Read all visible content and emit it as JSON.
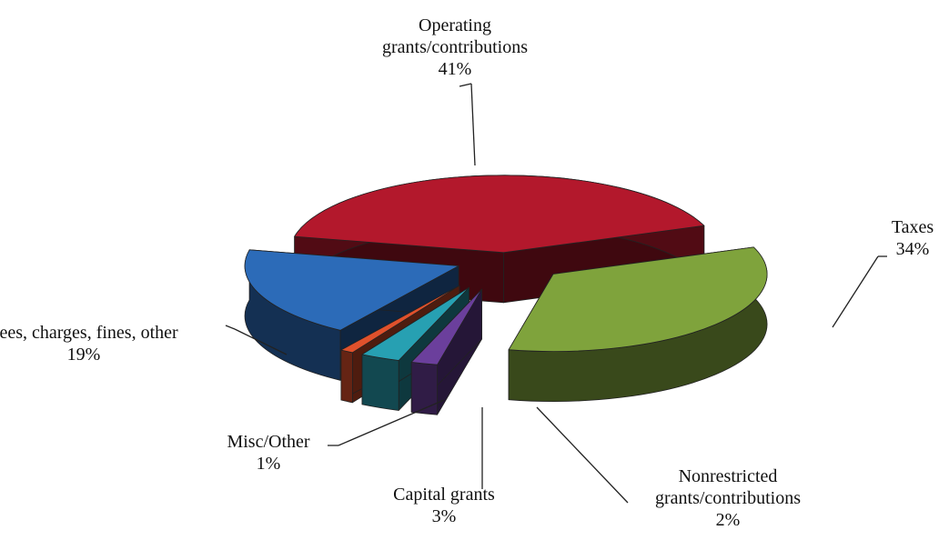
{
  "chart_data": {
    "type": "pie3d",
    "categories": [
      "Operating grants/contributions",
      "Taxes",
      "Nonrestricted grants/contributions",
      "Capital grants",
      "Misc/Other",
      "Fees, charges, fines, other"
    ],
    "values": [
      41,
      34,
      2,
      3,
      1,
      19
    ],
    "value_labels": [
      "41%",
      "34%",
      "2%",
      "3%",
      "1%",
      "19%"
    ],
    "colors": [
      "#b3182c",
      "#7fa33c",
      "#6b3f9c",
      "#27a0b2",
      "#e0512c",
      "#2c6bb8"
    ]
  }
}
